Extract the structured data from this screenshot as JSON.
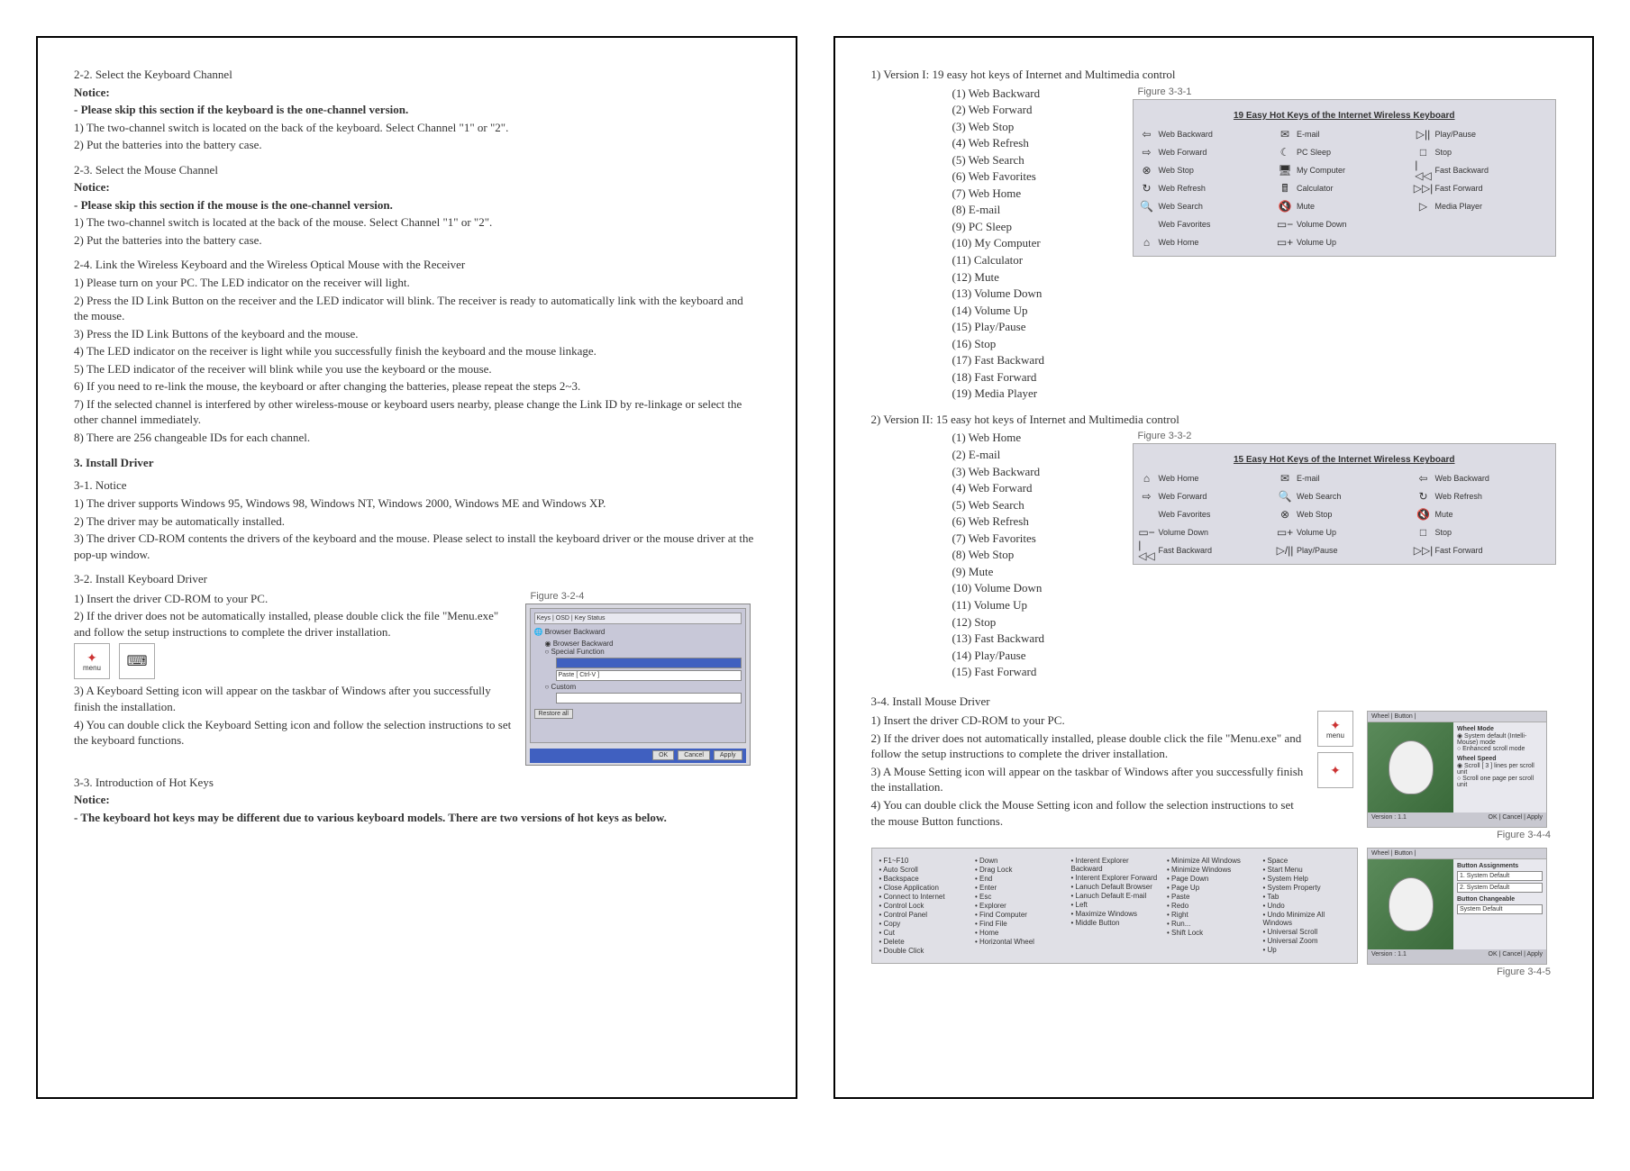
{
  "left": {
    "s22_title": "2-2. Select the Keyboard Channel",
    "notice": "Notice:",
    "s22_bold": "- Please skip this section if the keyboard is the one-channel version.",
    "s22_1": "1) The two-channel switch is located on the back of the keyboard. Select Channel \"1\" or \"2\".",
    "s22_2": "2) Put the batteries into the battery case.",
    "s23_title": "2-3. Select the Mouse Channel",
    "s23_bold": "- Please skip this section if the mouse is the one-channel version.",
    "s23_1": "1) The two-channel switch is located at the back of the mouse. Select Channel \"1\" or \"2\".",
    "s23_2": "2) Put the batteries into the battery case.",
    "s24_title": "2-4. Link the Wireless Keyboard and the Wireless Optical Mouse with the Receiver",
    "s24_1": "1) Please turn on your PC.  The LED indicator on the receiver will light.",
    "s24_2": "2) Press the ID Link Button on the receiver and the LED indicator will blink.  The receiver is ready to automatically link with the keyboard and the mouse.",
    "s24_3": "3) Press the ID Link Buttons of the keyboard and the mouse.",
    "s24_4": "4) The LED indicator on the receiver is light while you successfully finish the keyboard and the mouse linkage.",
    "s24_5": "5) The LED indicator of the receiver will blink while you use the keyboard or the mouse.",
    "s24_6": "6) If you need to re-link the mouse, the keyboard or after changing the batteries, please repeat the steps 2~3.",
    "s24_7": "7) If the selected channel is interfered by other wireless-mouse or keyboard users nearby, please change the Link ID by re-linkage or select the other channel immediately.",
    "s24_8": "8) There are 256 changeable IDs for each channel.",
    "s3_title": "3. Install Driver",
    "s31_title": "3-1. Notice",
    "s31_1": "1) The driver supports Windows 95, Windows 98, Windows NT, Windows 2000, Windows ME and Windows XP.",
    "s31_2": "2) The driver may be automatically installed.",
    "s31_3": "3) The driver CD-ROM contents the drivers of the keyboard and the mouse.  Please select to install the keyboard driver or the mouse driver at the pop-up window.",
    "s32_title": "3-2. Install Keyboard Driver",
    "s32_1": "1) Insert the driver CD-ROM to your PC.",
    "s32_2": "2) If the driver does not be automatically installed, please double click the file \"Menu.exe\" and follow the setup instructions to complete the driver installation.",
    "s32_3": "3) A Keyboard Setting icon will appear on the taskbar of Windows after you successfully finish the installation.",
    "s32_4": "4) You can double click the Keyboard Setting icon and follow the selection instructions to set the keyboard functions.",
    "s33_title": "3-3. Introduction of Hot Keys",
    "s33_bold": "- The keyboard hot keys may be different due to various keyboard models.  There are two versions of hot keys as below.",
    "fig324_label": "Figure 3-2-4",
    "fig324_line1": "Keys | OSD | Key Status",
    "fig324_line2": "Browser Backward",
    "fig324_line3": "◉ Browser Backward",
    "fig324_line4": "○ Special Function",
    "fig324_paste": "Paste [ Ctrl-V ]",
    "fig324_custom": "○ Custom",
    "fig324_restore": "Restore all",
    "fig324_ok": "OK",
    "fig324_cancel": "Cancel",
    "menu_label": "menu"
  },
  "right": {
    "v1_title": "1) Version I: 19 easy hot keys of Internet and Multimedia control",
    "v1": [
      "(1)  Web Backward",
      "(2)  Web Forward",
      "(3)  Web Stop",
      "(4)  Web Refresh",
      "(5)  Web Search",
      "(6)  Web Favorites",
      "(7)  Web Home",
      "(8)  E-mail",
      "(9)  PC Sleep",
      "(10)  My Computer",
      "(11)  Calculator",
      "(12)  Mute",
      "(13)  Volume Down",
      "(14)  Volume Up",
      "(15)  Play/Pause",
      "(16)  Stop",
      "(17)  Fast Backward",
      "(18)  Fast Forward",
      "(19)  Media Player"
    ],
    "fig331_label": "Figure 3-3-1",
    "fig331_title": "19 Easy Hot Keys of the Internet Wireless Keyboard",
    "fig331": [
      [
        "⇦",
        "Web Backward",
        "✉",
        "E-mail",
        "▷||",
        "Play/Pause"
      ],
      [
        "⇨",
        "Web Forward",
        "☾",
        "PC Sleep",
        "□",
        "Stop"
      ],
      [
        "⊗",
        "Web Stop",
        "🖥",
        "My Computer",
        "|◁◁",
        "Fast Backward"
      ],
      [
        "↻",
        "Web Refresh",
        "🖩",
        "Calculator",
        "▷▷|",
        "Fast Forward"
      ],
      [
        "🔍",
        "Web Search",
        "🔇",
        "Mute",
        "▷",
        "Media Player"
      ],
      [
        "",
        "Web Favorites",
        "▭−",
        "Volume Down",
        "",
        ""
      ],
      [
        "⌂",
        "Web Home",
        "▭+",
        "Volume Up",
        "",
        ""
      ]
    ],
    "v2_title": "2) Version II: 15 easy hot keys of Internet and Multimedia control",
    "v2": [
      "(1) Web Home",
      "(2) E-mail",
      "(3) Web Backward",
      "(4) Web Forward",
      "(5) Web Search",
      "(6) Web Refresh",
      "(7) Web Favorites",
      "(8) Web Stop",
      "(9) Mute",
      "(10) Volume Down",
      "(11) Volume Up",
      "(12) Stop",
      "(13) Fast Backward",
      "(14) Play/Pause",
      "(15) Fast Forward"
    ],
    "fig332_label": "Figure 3-3-2",
    "fig332_title": "15 Easy Hot Keys of the Internet Wireless Keyboard",
    "fig332": [
      [
        "⌂",
        "Web Home",
        "✉",
        "E-mail",
        "⇦",
        "Web Backward"
      ],
      [
        "⇨",
        "Web Forward",
        "🔍",
        "Web Search",
        "↻",
        "Web Refresh"
      ],
      [
        "",
        "Web Favorites",
        "⊗",
        "Web Stop",
        "🔇",
        "Mute"
      ],
      [
        "▭−",
        "Volume Down",
        "▭+",
        "Volume Up",
        "□",
        "Stop"
      ],
      [
        "|◁◁",
        "Fast Backward",
        "▷/||",
        "Play/Pause",
        "▷▷|",
        "Fast Forward"
      ]
    ],
    "s34_title": "3-4. Install Mouse Driver",
    "s34_1": "1) Insert the driver CD-ROM to your PC.",
    "s34_2": "2) If the driver does not automatically installed, please double click the file \"Menu.exe\" and follow the setup instructions to complete the driver installation.",
    "s34_3": "3) A Mouse Setting icon will appear on the taskbar of Windows after you successfully finish the installation.",
    "s34_4": "4) You can double click the Mouse Setting icon and follow the selection instructions to set the mouse Button functions.",
    "fig344_label": "Figure 3-4-4",
    "fig345_label": "Figure 3-4-5",
    "menu_label": "menu",
    "mousefig_tab1": "Wheel | Button |",
    "mousefig_sec1": "Wheel Mode",
    "mousefig_opt1": "◉ System default (Intelli-Mouse) mode",
    "mousefig_opt2": "○ Enhanced scroll mode",
    "mousefig_sec2": "Wheel Speed",
    "mousefig_opt3": "◉ Scroll  [ 3 ]  lines per scroll unit",
    "mousefig_opt4": "○ Scroll one page per scroll unit",
    "mousefig_ver": "Version : 1.1",
    "mousefig_ok": "OK",
    "mousefig_cancel": "Cancel",
    "mousefig_apply": "Apply",
    "mousefig2_sec": "Button Assignments",
    "mousefig2_btn1": "1. System Default",
    "mousefig2_btn2": "2. System Default",
    "mousefig2_btn3": "System Default",
    "bottom": {
      "c1": [
        "• F1~F10",
        "• Auto Scroll",
        "• Backspace",
        "• Close Application",
        "• Connect to Internet",
        "• Control Lock",
        "• Control Panel",
        "• Copy",
        "• Cut",
        "• Delete",
        "• Double Click"
      ],
      "c2": [
        "• Down",
        "• Drag Lock",
        "• End",
        "• Enter",
        "• Esc",
        "• Explorer",
        "• Find Computer",
        "• Find File",
        "• Home",
        "• Horizontal Wheel"
      ],
      "c3": [
        "• Interent Explorer Backward",
        "• Interent Explorer Forward",
        "• Lanuch Default Browser",
        "• Lanuch Default E-mail",
        "• Left",
        "• Maximize Windows",
        "• Middle Button"
      ],
      "c4": [
        "• Minimize All Windows",
        "• Minimize Windows",
        "• Page Down",
        "• Page Up",
        "• Paste",
        "• Redo",
        "• Right",
        "• Run...",
        "• Shift Lock"
      ],
      "c5": [
        "• Space",
        "• Start Menu",
        "• System Help",
        "• System Property",
        "• Tab",
        "• Undo",
        "• Undo Minimize All Windows",
        "• Universal Scroll",
        "• Universal Zoom",
        "• Up"
      ]
    }
  }
}
